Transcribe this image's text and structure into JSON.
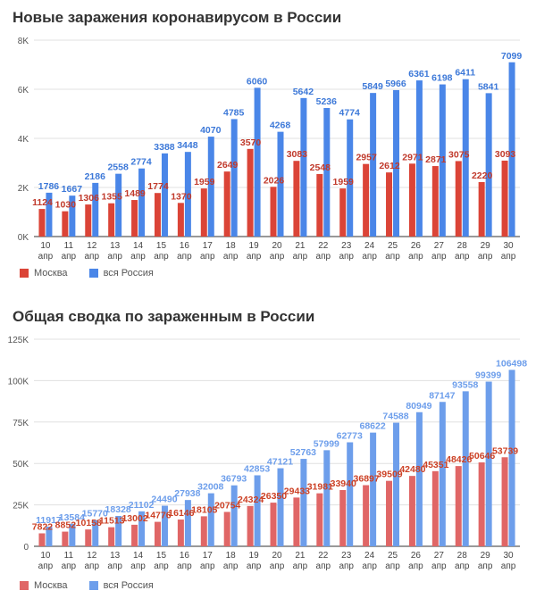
{
  "chart_data": [
    {
      "type": "bar",
      "title": "Новые заражения коронавирусом в России",
      "categories": [
        [
          "10",
          "апр"
        ],
        [
          "11",
          "апр"
        ],
        [
          "12",
          "апр"
        ],
        [
          "13",
          "апр"
        ],
        [
          "14",
          "апр"
        ],
        [
          "15",
          "апр"
        ],
        [
          "16",
          "апр"
        ],
        [
          "17",
          "апр"
        ],
        [
          "18",
          "апр"
        ],
        [
          "19",
          "апр"
        ],
        [
          "20",
          "апр"
        ],
        [
          "21",
          "апр"
        ],
        [
          "22",
          "апр"
        ],
        [
          "23",
          "апр"
        ],
        [
          "24",
          "апр"
        ],
        [
          "25",
          "апр"
        ],
        [
          "26",
          "апр"
        ],
        [
          "27",
          "апр"
        ],
        [
          "28",
          "апр"
        ],
        [
          "29",
          "апр"
        ],
        [
          "30",
          "апр"
        ]
      ],
      "series": [
        {
          "name": "Москва",
          "color": "#db4437",
          "values": [
            1124,
            1030,
            1306,
            1355,
            1489,
            1774,
            1370,
            1959,
            2649,
            3570,
            2026,
            3083,
            2548,
            1959,
            2957,
            2612,
            2971,
            2871,
            3075,
            2220,
            3093
          ]
        },
        {
          "name": "вся Россия",
          "color": "#4a86e8",
          "values": [
            1786,
            1667,
            2186,
            2558,
            2774,
            3388,
            3448,
            4070,
            4785,
            6060,
            4268,
            5642,
            5236,
            4774,
            5849,
            5966,
            6361,
            6198,
            6411,
            5841,
            7099
          ]
        }
      ],
      "ylim": [
        0,
        8000
      ],
      "yticks": [
        0,
        2000,
        4000,
        6000,
        8000
      ],
      "ytick_labels": [
        "0K",
        "2K",
        "4K",
        "6K",
        "8K"
      ],
      "grid": true,
      "legend": "bottom-left"
    },
    {
      "type": "bar",
      "title": "Общая сводка по зараженным в России",
      "categories": [
        [
          "10",
          "апр"
        ],
        [
          "11",
          "апр"
        ],
        [
          "12",
          "апр"
        ],
        [
          "13",
          "апр"
        ],
        [
          "14",
          "апр"
        ],
        [
          "15",
          "апр"
        ],
        [
          "16",
          "апр"
        ],
        [
          "17",
          "апр"
        ],
        [
          "18",
          "апр"
        ],
        [
          "19",
          "апр"
        ],
        [
          "20",
          "апр"
        ],
        [
          "21",
          "апр"
        ],
        [
          "22",
          "апр"
        ],
        [
          "23",
          "апр"
        ],
        [
          "24",
          "апр"
        ],
        [
          "25",
          "апр"
        ],
        [
          "26",
          "апр"
        ],
        [
          "27",
          "апр"
        ],
        [
          "28",
          "апр"
        ],
        [
          "29",
          "апр"
        ],
        [
          "30",
          "апр"
        ]
      ],
      "series": [
        {
          "name": "Москва",
          "color": "#e06666",
          "values": [
            7822,
            8852,
            10158,
            11513,
            13002,
            14776,
            16146,
            18105,
            20754,
            24324,
            26350,
            29433,
            31981,
            33940,
            36897,
            39509,
            42480,
            45351,
            48426,
            50646,
            53739
          ]
        },
        {
          "name": "вся Россия",
          "color": "#6d9eeb",
          "values": [
            11917,
            13584,
            15770,
            18328,
            21102,
            24490,
            27938,
            32008,
            36793,
            42853,
            47121,
            52763,
            57999,
            62773,
            68622,
            74588,
            80949,
            87147,
            93558,
            99399,
            106498
          ]
        }
      ],
      "ylim": [
        0,
        125000
      ],
      "yticks": [
        0,
        25000,
        50000,
        75000,
        100000,
        125000
      ],
      "ytick_labels": [
        "0",
        "25K",
        "50K",
        "75K",
        "100K",
        "125K"
      ],
      "grid": true,
      "legend": "bottom-left"
    }
  ]
}
